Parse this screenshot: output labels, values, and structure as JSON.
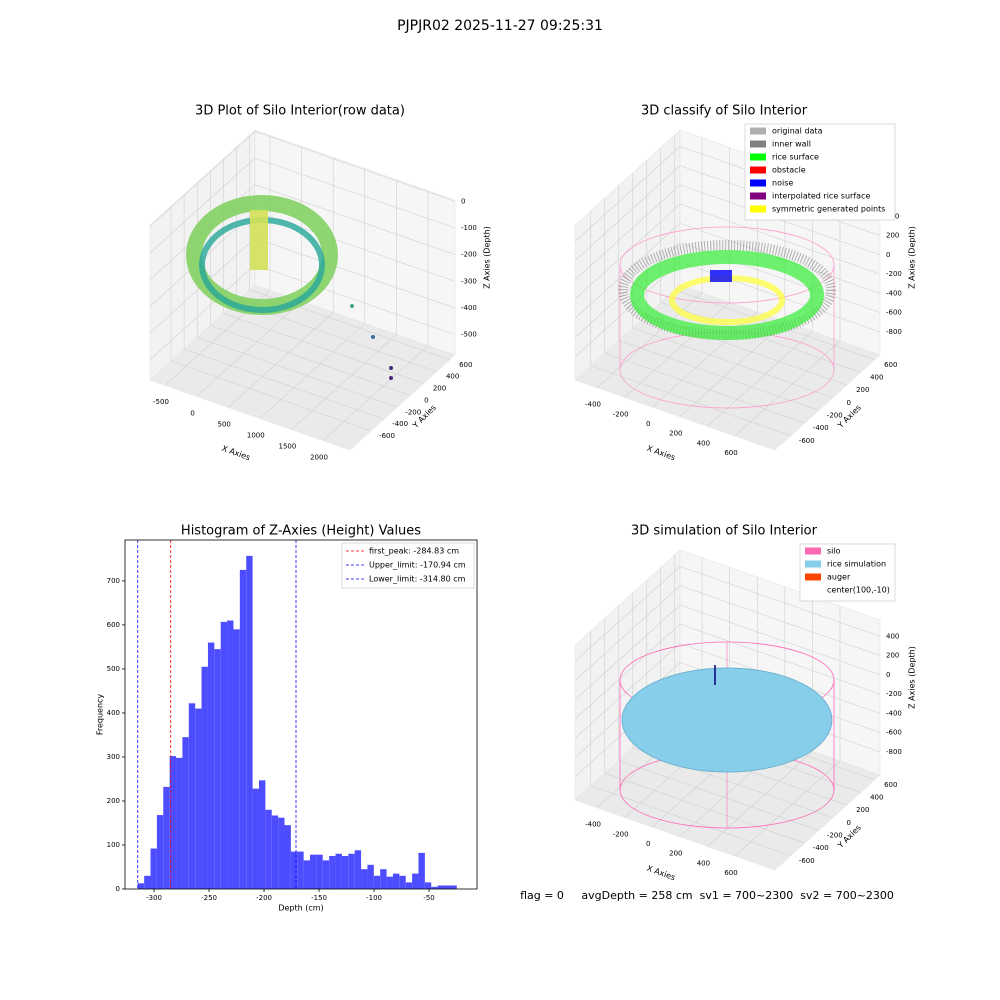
{
  "suptitle": "PJPJR02 2025-11-27 09:25:31",
  "footer": "flag = 0     avgDepth = 258 cm  sv1 = 700~2300  sv2 = 700~2300",
  "chart_data": [
    {
      "type": "scatter3d",
      "title": "3D Plot of Silo Interior(row data)",
      "xlabel": "X Axies",
      "ylabel": "Y Axies",
      "zlabel": "Z Axies (Depth)",
      "xlim": [
        -737,
        2427
      ],
      "xticks": [
        -500,
        0,
        500,
        1000,
        1500,
        2000
      ],
      "ylim": [
        -920,
        680
      ],
      "yticks": [
        -600,
        -400,
        -200,
        0,
        200,
        400,
        600
      ],
      "zlim": [
        -576,
        5
      ],
      "zticks": [
        0,
        -100,
        -200,
        -300,
        -400,
        -500
      ]
    },
    {
      "type": "scatter3d",
      "title": "3D classify of Silo Interior",
      "xlabel": "X Axies",
      "ylabel": "Y Axies",
      "zlabel": "Z Axies (Depth)",
      "xlim": [
        -560,
        890
      ],
      "xticks": [
        -400,
        -200,
        0,
        200,
        400,
        600
      ],
      "ylim": [
        -825,
        675
      ],
      "yticks": [
        -600,
        -400,
        -200,
        0,
        200,
        400,
        600
      ],
      "zlim": [
        -1040,
        570
      ],
      "zticks": [
        400,
        200,
        0,
        -200,
        -400,
        -600,
        -800
      ],
      "legend": "upper right",
      "series": [
        {
          "name": "original data",
          "color": "#b0b0b0"
        },
        {
          "name": "inner wall",
          "color": "#808080"
        },
        {
          "name": "rice surface",
          "color": "#00ff00"
        },
        {
          "name": "obstacle",
          "color": "#ff0000"
        },
        {
          "name": "noise",
          "color": "#0000ff"
        },
        {
          "name": "interpolated rice surface",
          "color": "#800080"
        },
        {
          "name": "symmetric generated points",
          "color": "#ffff00"
        }
      ]
    },
    {
      "type": "histogram",
      "title": "Histogram of Z-Axies (Height) Values",
      "xlabel": "Depth (cm)",
      "ylabel": "Frequency",
      "color": "#4d4dff",
      "bins": [
        -314.8,
        -309.0,
        -303.2,
        -297.4,
        -291.6,
        -285.8,
        -280.0,
        -274.2,
        -268.4,
        -262.6,
        -256.8,
        -251.0,
        -245.2,
        -239.4,
        -233.6,
        -227.8,
        -222.0,
        -216.2,
        -210.4,
        -204.6,
        -198.8,
        -193.0,
        -187.2,
        -181.4,
        -175.6,
        -169.8,
        -164.0,
        -158.2,
        -152.4,
        -146.6,
        -140.8,
        -135.0,
        -129.2,
        -123.4,
        -117.6,
        -111.8,
        -106.0,
        -100.2,
        -94.4,
        -88.6,
        -82.8,
        -77.0,
        -71.2,
        -65.4,
        -59.6,
        -53.8,
        -48.0,
        -42.2,
        -36.4,
        -30.6,
        -24.8
      ],
      "values": [
        13,
        30,
        92,
        168,
        232,
        302,
        298,
        345,
        422,
        410,
        505,
        560,
        545,
        607,
        610,
        590,
        725,
        757,
        228,
        247,
        180,
        167,
        162,
        145,
        85,
        85,
        65,
        78,
        78,
        65,
        75,
        80,
        75,
        80,
        88,
        45,
        55,
        30,
        45,
        28,
        35,
        30,
        15,
        35,
        82,
        15,
        5,
        8,
        8,
        8
      ],
      "xlim": [
        -326.4,
        -6.4
      ],
      "xticks": [
        -300,
        -250,
        -200,
        -150,
        -100,
        -50
      ],
      "ylim": [
        0,
        793
      ],
      "yticks": [
        0,
        100,
        200,
        300,
        400,
        500,
        600,
        700
      ],
      "legend": "upper right",
      "vlines": [
        {
          "label": "first_peak: -284.83 cm",
          "value": -284.83,
          "color": "#ff0000"
        },
        {
          "label": "Upper_limit: -170.94 cm",
          "value": -170.94,
          "color": "#0000ff"
        },
        {
          "label": "Lower_limit: -314.80 cm",
          "value": -314.8,
          "color": "#0000ff"
        }
      ]
    },
    {
      "type": "scatter3d",
      "title": "3D simulation of Silo Interior",
      "xlabel": "X Axies",
      "ylabel": "Y Axies",
      "zlabel": "Z Axies (Depth)",
      "xlim": [
        -560,
        890
      ],
      "xticks": [
        -400,
        -200,
        0,
        200,
        400,
        600
      ],
      "ylim": [
        -825,
        675
      ],
      "yticks": [
        -600,
        -400,
        -200,
        0,
        200,
        400,
        600
      ],
      "zlim": [
        -1040,
        570
      ],
      "zticks": [
        400,
        200,
        0,
        -200,
        -400,
        -600,
        -800
      ],
      "legend": "upper right",
      "series": [
        {
          "name": "silo",
          "color": "#ff69b4"
        },
        {
          "name": "rice simulation",
          "color": "#87ceeb"
        },
        {
          "name": "auger",
          "color": "#ff4500"
        },
        {
          "name": "center(100,-10)",
          "color": "#ffffff"
        }
      ]
    }
  ]
}
